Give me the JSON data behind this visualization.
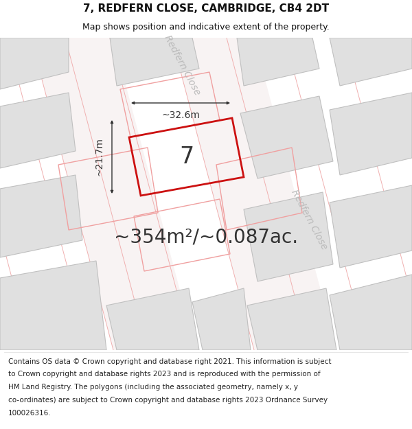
{
  "title": "7, REDFERN CLOSE, CAMBRIDGE, CB4 2DT",
  "subtitle": "Map shows position and indicative extent of the property.",
  "footer_lines": [
    "Contains OS data © Crown copyright and database right 2021. This information is subject",
    "to Crown copyright and database rights 2023 and is reproduced with the permission of",
    "HM Land Registry. The polygons (including the associated geometry, namely x, y",
    "co-ordinates) are subject to Crown copyright and database rights 2023 Ordnance Survey",
    "100026316."
  ],
  "area_text": "~354m²/~0.087ac.",
  "dim_width": "~32.6m",
  "dim_height": "~21.7m",
  "plot_number": "7",
  "road_label1": "Redfern Close",
  "road_label2": "Redfern Close",
  "highlight_color": "#cc1111",
  "building_fill": "#e0e0e0",
  "building_edge": "#c0c0c0",
  "neighbor_edge": "#f0a0a0",
  "road_line_color": "#f0b0b0",
  "road_bg": "#f8f3f3",
  "map_bg": "#f8f5f5",
  "dim_color": "#333333",
  "text_color": "#333333",
  "label_color": "#bbbbbb",
  "title_fontsize": 11,
  "subtitle_fontsize": 9,
  "footer_fontsize": 7.5,
  "area_fontsize": 20,
  "dim_fontsize": 10,
  "plot_num_fontsize": 24,
  "road_label_fontsize": 10
}
